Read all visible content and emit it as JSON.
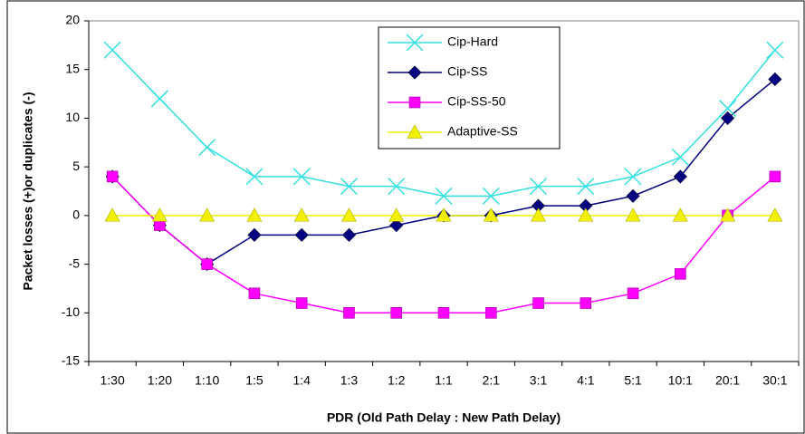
{
  "chart_data": {
    "type": "line",
    "x_label": "PDR (Old Path Delay : New Path Delay)",
    "y_label": "Packet losses (+)or duplicates (-)",
    "categories": [
      "1:30",
      "1:20",
      "1:10",
      "1:5",
      "1:4",
      "1:3",
      "1:2",
      "1:1",
      "2:1",
      "3:1",
      "4:1",
      "5:1",
      "10:1",
      "20:1",
      "30:1"
    ],
    "series": [
      {
        "name": "Cip-Hard",
        "color": "#33e0e0",
        "marker": "x",
        "values": [
          17,
          12,
          7,
          4,
          4,
          3,
          3,
          2,
          2,
          3,
          3,
          4,
          6,
          11,
          17
        ]
      },
      {
        "name": "Cip-SS",
        "color": "#000080",
        "marker": "diamond",
        "values": [
          4,
          -1,
          -5,
          -2,
          -2,
          -2,
          -1,
          0,
          0,
          1,
          1,
          2,
          4,
          10,
          14
        ]
      },
      {
        "name": "Cip-SS-50",
        "color": "#ff00ff",
        "marker": "square",
        "values": [
          4,
          -1,
          -5,
          -8,
          -9,
          -10,
          -10,
          -10,
          -10,
          -9,
          -9,
          -8,
          -6,
          0,
          4
        ]
      },
      {
        "name": "Adaptive-SS",
        "color": "#f0f000",
        "marker": "triangle",
        "values": [
          0,
          0,
          0,
          0,
          0,
          0,
          0,
          0,
          0,
          0,
          0,
          0,
          0,
          0,
          0
        ]
      }
    ],
    "ylim": [
      -15,
      20
    ],
    "yticks": [
      -15,
      -10,
      -5,
      0,
      5,
      10,
      15,
      20
    ],
    "grid": false,
    "legend": "top"
  }
}
